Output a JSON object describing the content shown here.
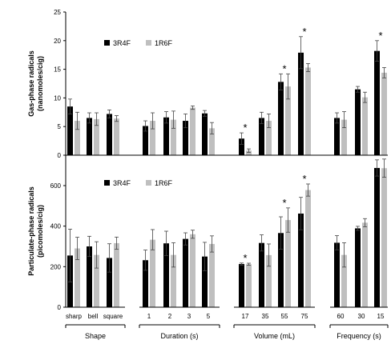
{
  "chart_data": [
    {
      "type": "bar",
      "ylabel": "Gas-phase radicals\n(nanomoles/cig)",
      "ylim": [
        0,
        25
      ],
      "yticks": [
        0,
        5,
        10,
        15,
        20,
        25
      ],
      "legend_placement": "top-left",
      "series": [
        {
          "name": "3R4F",
          "color": "#000000",
          "values": [
            8.5,
            6.5,
            7.2,
            5.1,
            6.6,
            6.0,
            7.3,
            2.9,
            6.5,
            12.8,
            17.9,
            6.5,
            11.5,
            18.2
          ],
          "errors": [
            1.3,
            0.9,
            0.7,
            0.9,
            1.0,
            1.2,
            0.5,
            1.0,
            1.0,
            1.4,
            2.8,
            0.9,
            0.5,
            1.8
          ]
        },
        {
          "name": "1R6F",
          "color": "#bfbfbf",
          "values": [
            6.0,
            6.3,
            6.4,
            6.0,
            6.2,
            8.3,
            4.7,
            0.8,
            6.0,
            12.0,
            15.3,
            6.2,
            10.1,
            14.4
          ],
          "errors": [
            1.5,
            1.1,
            0.5,
            1.4,
            1.5,
            0.3,
            1.0,
            0.3,
            1.2,
            2.2,
            0.7,
            1.4,
            0.9,
            0.9
          ]
        }
      ],
      "significant": [
        false,
        false,
        false,
        false,
        false,
        false,
        false,
        true,
        false,
        true,
        true,
        false,
        false,
        true
      ]
    },
    {
      "type": "bar",
      "ylabel": "Particulate-phase radicals\n(picomoles/cig)",
      "ylim": [
        0,
        750
      ],
      "yticks": [
        0,
        200,
        400,
        600
      ],
      "legend_placement": "top-left",
      "series": [
        {
          "name": "3R4F",
          "color": "#000000",
          "values": [
            255,
            300,
            243,
            232,
            315,
            337,
            250,
            213,
            317,
            366,
            462,
            318,
            389,
            687
          ],
          "errors": [
            130,
            50,
            70,
            50,
            60,
            30,
            70,
            5,
            40,
            80,
            80,
            35,
            10,
            40
          ]
        },
        {
          "name": "1R6F",
          "color": "#bfbfbf",
          "values": [
            290,
            258,
            316,
            333,
            258,
            360,
            312,
            212,
            257,
            430,
            578,
            258,
            417,
            686
          ],
          "errors": [
            55,
            65,
            30,
            50,
            60,
            20,
            40,
            5,
            55,
            60,
            30,
            60,
            20,
            45
          ]
        }
      ],
      "significant": [
        false,
        false,
        false,
        false,
        false,
        false,
        false,
        true,
        false,
        true,
        true,
        false,
        false,
        false
      ]
    }
  ],
  "categories": [
    "sharp",
    "bell",
    "square",
    "1",
    "2",
    "3",
    "5",
    "17",
    "35",
    "55",
    "75",
    "60",
    "30",
    "15"
  ],
  "groups": [
    {
      "label": "Shape",
      "count": 3
    },
    {
      "label": "Duration (s)",
      "count": 4
    },
    {
      "label": "Volume (mL)",
      "count": 4
    },
    {
      "label": "Frequency (s)",
      "count": 3
    }
  ],
  "significance_mark": "*"
}
